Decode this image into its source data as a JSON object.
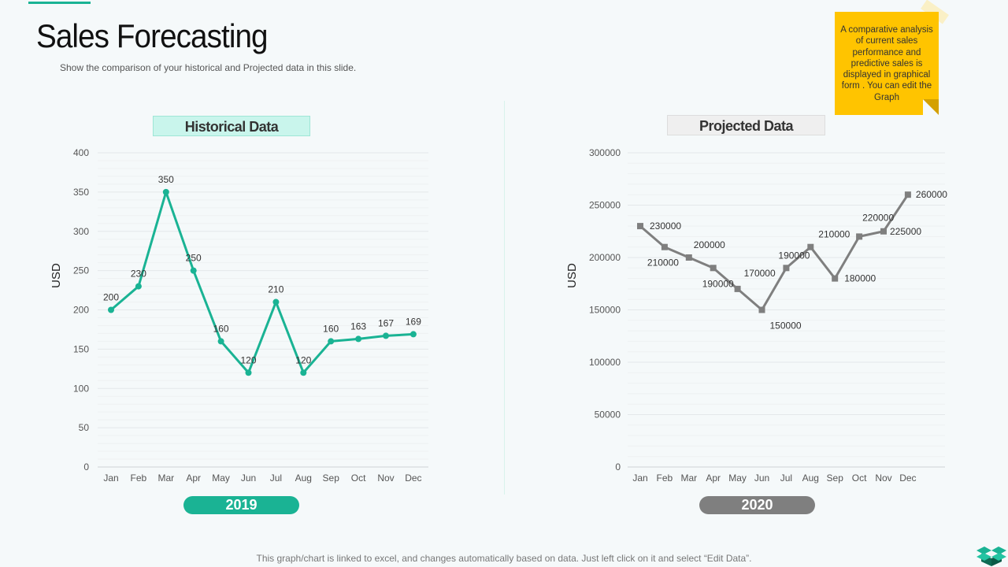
{
  "header": {
    "title": "Sales Forecasting",
    "subtitle": "Show the comparison of your historical and Projected data in this slide."
  },
  "note": "A comparative analysis of current sales performance and predictive sales is displayed in graphical form . You can edit the Graph",
  "footer": "This graph/chart is linked to excel,  and changes automatically based on data. Just left click on it and select “Edit Data”.",
  "chart_data": [
    {
      "type": "line",
      "title": "Historical Data",
      "year_label": "2019",
      "ylabel": "USD",
      "ylim": [
        0,
        400
      ],
      "yticks": [
        0,
        50,
        100,
        150,
        200,
        250,
        300,
        350,
        400
      ],
      "grid": true,
      "categories": [
        "Jan",
        "Feb",
        "Mar",
        "Apr",
        "May",
        "Jun",
        "Jul",
        "Aug",
        "Sep",
        "Oct",
        "Nov",
        "Dec"
      ],
      "values": [
        200,
        230,
        350,
        250,
        160,
        120,
        210,
        120,
        160,
        163,
        167,
        169
      ],
      "color": "#1ab394",
      "marker": "circle"
    },
    {
      "type": "line",
      "title": "Projected Data",
      "year_label": "2020",
      "ylabel": "USD",
      "ylim": [
        0,
        300000
      ],
      "yticks": [
        0,
        50000,
        100000,
        150000,
        200000,
        250000,
        300000
      ],
      "grid": true,
      "categories": [
        "Jan",
        "Feb",
        "Mar",
        "Apr",
        "May",
        "Jun",
        "Jul",
        "Aug",
        "Sep",
        "Oct",
        "Nov",
        "Dec"
      ],
      "values": [
        230000,
        210000,
        200000,
        190000,
        170000,
        150000,
        190000,
        210000,
        180000,
        220000,
        225000,
        260000
      ],
      "color": "#7f7f7f",
      "marker": "square"
    }
  ],
  "colors": {
    "accent": "#1ab394",
    "projected": "#7f7f7f",
    "note": "#ffc400"
  }
}
